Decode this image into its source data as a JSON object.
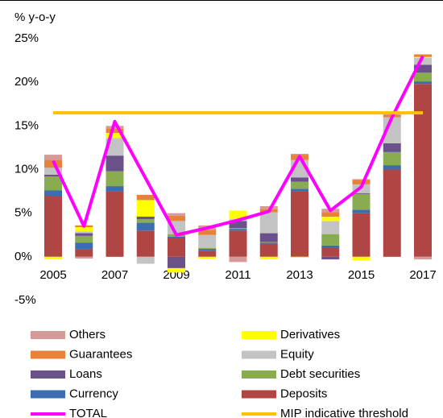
{
  "chart_data": {
    "type": "bar",
    "y_label": "% y-o-y",
    "categories": [
      "2005",
      null,
      "2007",
      null,
      "2009",
      null,
      "2011",
      null,
      "2013",
      null,
      "2015",
      null,
      "2017"
    ],
    "ylim": [
      -5,
      25
    ],
    "yticks": [
      {
        "value": 25,
        "label": "25%"
      },
      {
        "value": 20,
        "label": "20%"
      },
      {
        "value": 15,
        "label": "15%"
      },
      {
        "value": 10,
        "label": "10%"
      },
      {
        "value": 5,
        "label": "5%"
      },
      {
        "value": 0,
        "label": "0%"
      },
      {
        "value": -5,
        "label": "-5%"
      }
    ],
    "series": [
      {
        "name": "Deposits",
        "type": "bar",
        "color": "#b04643",
        "values": [
          7.0,
          0.9,
          7.5,
          3.0,
          2.2,
          0.7,
          3.0,
          1.5,
          7.5,
          1.0,
          5.0,
          10.0,
          19.8
        ]
      },
      {
        "name": "Currency",
        "type": "bar",
        "color": "#3b6db0",
        "values": [
          0.6,
          0.7,
          0.6,
          0.9,
          0.1,
          0.2,
          0.2,
          0.1,
          0.3,
          0.3,
          0.4,
          0.5,
          0.3
        ]
      },
      {
        "name": "Debt securities",
        "type": "bar",
        "color": "#8aac50",
        "values": [
          1.6,
          0.8,
          1.7,
          0.4,
          0.3,
          0.1,
          0.1,
          0.1,
          0.8,
          1.3,
          1.8,
          1.5,
          1.0
        ]
      },
      {
        "name": "Loans",
        "type": "bar",
        "color": "#6b5189",
        "values": [
          0.2,
          0.3,
          1.8,
          0.3,
          -1.3,
          0.0,
          0.8,
          1.0,
          0.5,
          -0.3,
          0.1,
          1.0,
          0.9
        ]
      },
      {
        "name": "Equity",
        "type": "bar",
        "color": "#c3c3c3",
        "values": [
          0.8,
          0.2,
          2.0,
          -0.8,
          1.5,
          1.5,
          0.2,
          2.4,
          2.0,
          1.5,
          1.0,
          3.0,
          0.8
        ]
      },
      {
        "name": "Derivatives",
        "type": "bar",
        "color": "#ffff00",
        "values": [
          -0.3,
          0.5,
          0.6,
          1.9,
          -0.5,
          -0.2,
          1.0,
          -0.3,
          -0.1,
          0.5,
          -0.4,
          0.0,
          0.1
        ]
      },
      {
        "name": "Guarantees",
        "type": "bar",
        "color": "#e8823a",
        "values": [
          0.9,
          0.2,
          0.5,
          0.6,
          0.6,
          0.6,
          0.0,
          0.4,
          0.6,
          0.5,
          0.5,
          0.3,
          0.3
        ]
      },
      {
        "name": "Others",
        "type": "bar",
        "color": "#d59b98",
        "values": [
          0.6,
          -0.2,
          0.3,
          0.0,
          0.3,
          0.5,
          -0.6,
          0.3,
          0.1,
          0.4,
          0.1,
          0.2,
          -0.3
        ]
      },
      {
        "name": "TOTAL",
        "type": "line",
        "color": "#ff00ff",
        "values": [
          11.0,
          3.5,
          15.5,
          9.0,
          2.5,
          3.3,
          4.2,
          5.2,
          11.5,
          5.3,
          8.0,
          16.0,
          23.0
        ]
      },
      {
        "name": "MIP indicative threshold",
        "type": "line",
        "color": "#ffc000",
        "values": [
          16.5,
          16.5,
          16.5,
          16.5,
          16.5,
          16.5,
          16.5,
          16.5,
          16.5,
          16.5,
          16.5,
          16.5,
          16.5
        ]
      }
    ]
  }
}
